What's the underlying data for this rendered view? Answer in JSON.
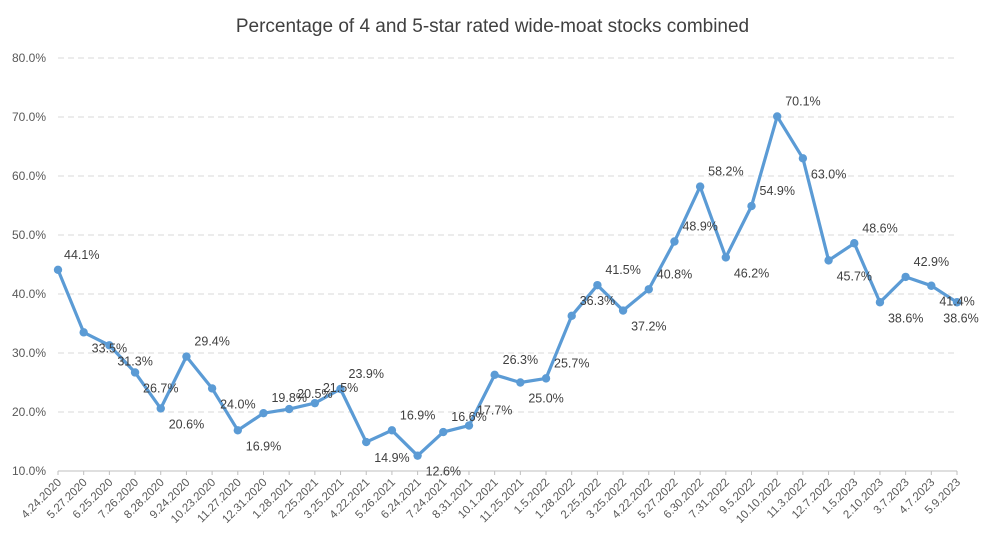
{
  "chart_data": {
    "type": "line",
    "title": "Percentage of 4 and 5-star rated wide-moat stocks combined",
    "xlabel": "",
    "ylabel": "",
    "ylim": [
      0.1,
      0.8
    ],
    "ytick_values": [
      0.1,
      0.2,
      0.3,
      0.4,
      0.5,
      0.6,
      0.7,
      0.8
    ],
    "ytick_labels": [
      "10.0%",
      "20.0%",
      "30.0%",
      "40.0%",
      "50.0%",
      "60.0%",
      "70.0%",
      "80.0%"
    ],
    "grid": true,
    "legend": "none",
    "line_color": "#5b9bd5",
    "categories": [
      "4.24.2020",
      "5.27.2020",
      "6.25.2020",
      "7.26.2020",
      "8.28.2020",
      "9.24.2020",
      "10.23.2020",
      "11.27.2020",
      "12.31.2020",
      "1.28.2021",
      "2.25.2021",
      "3.25.2021",
      "4.22.2021",
      "5.26.2021",
      "6.24.2021",
      "7.24.2021",
      "8.31.2021",
      "10.1.2021",
      "11.25.2021",
      "1.5.2022",
      "1.28.2022",
      "2.25.2022",
      "3.25.2022",
      "4.22.2022",
      "5.27.2022",
      "6.30.2022",
      "7.31.2022",
      "9.5.2022",
      "10.10.2022",
      "11.3.2022",
      "12.7.2022",
      "1.5.2023",
      "2.10.2023",
      "3.7.2023",
      "4.7.2023",
      "5.9.2023"
    ],
    "values": [
      0.441,
      0.335,
      0.313,
      0.267,
      0.206,
      0.294,
      0.24,
      0.169,
      0.198,
      0.205,
      0.215,
      0.239,
      0.149,
      0.169,
      0.126,
      0.166,
      0.177,
      0.263,
      0.25,
      0.257,
      0.363,
      0.415,
      0.372,
      0.408,
      0.489,
      0.582,
      0.462,
      0.549,
      0.701,
      0.63,
      0.457,
      0.486,
      0.386,
      0.429,
      0.414,
      0.386
    ],
    "value_labels": [
      "44.1%",
      "33.5%",
      "31.3%",
      "26.7%",
      "20.6%",
      "29.4%",
      "24.0%",
      "16.9%",
      "19.8%",
      "20.5%",
      "21.5%",
      "23.9%",
      "14.9%",
      "16.9%",
      "12.6%",
      "16.6%",
      "17.7%",
      "26.3%",
      "25.0%",
      "25.7%",
      "36.3%",
      "41.5%",
      "37.2%",
      "40.8%",
      "48.9%",
      "58.2%",
      "46.2%",
      "54.9%",
      "70.1%",
      "63.0%",
      "45.7%",
      "48.6%",
      "38.6%",
      "42.9%",
      "41.4%",
      "38.6%"
    ]
  }
}
